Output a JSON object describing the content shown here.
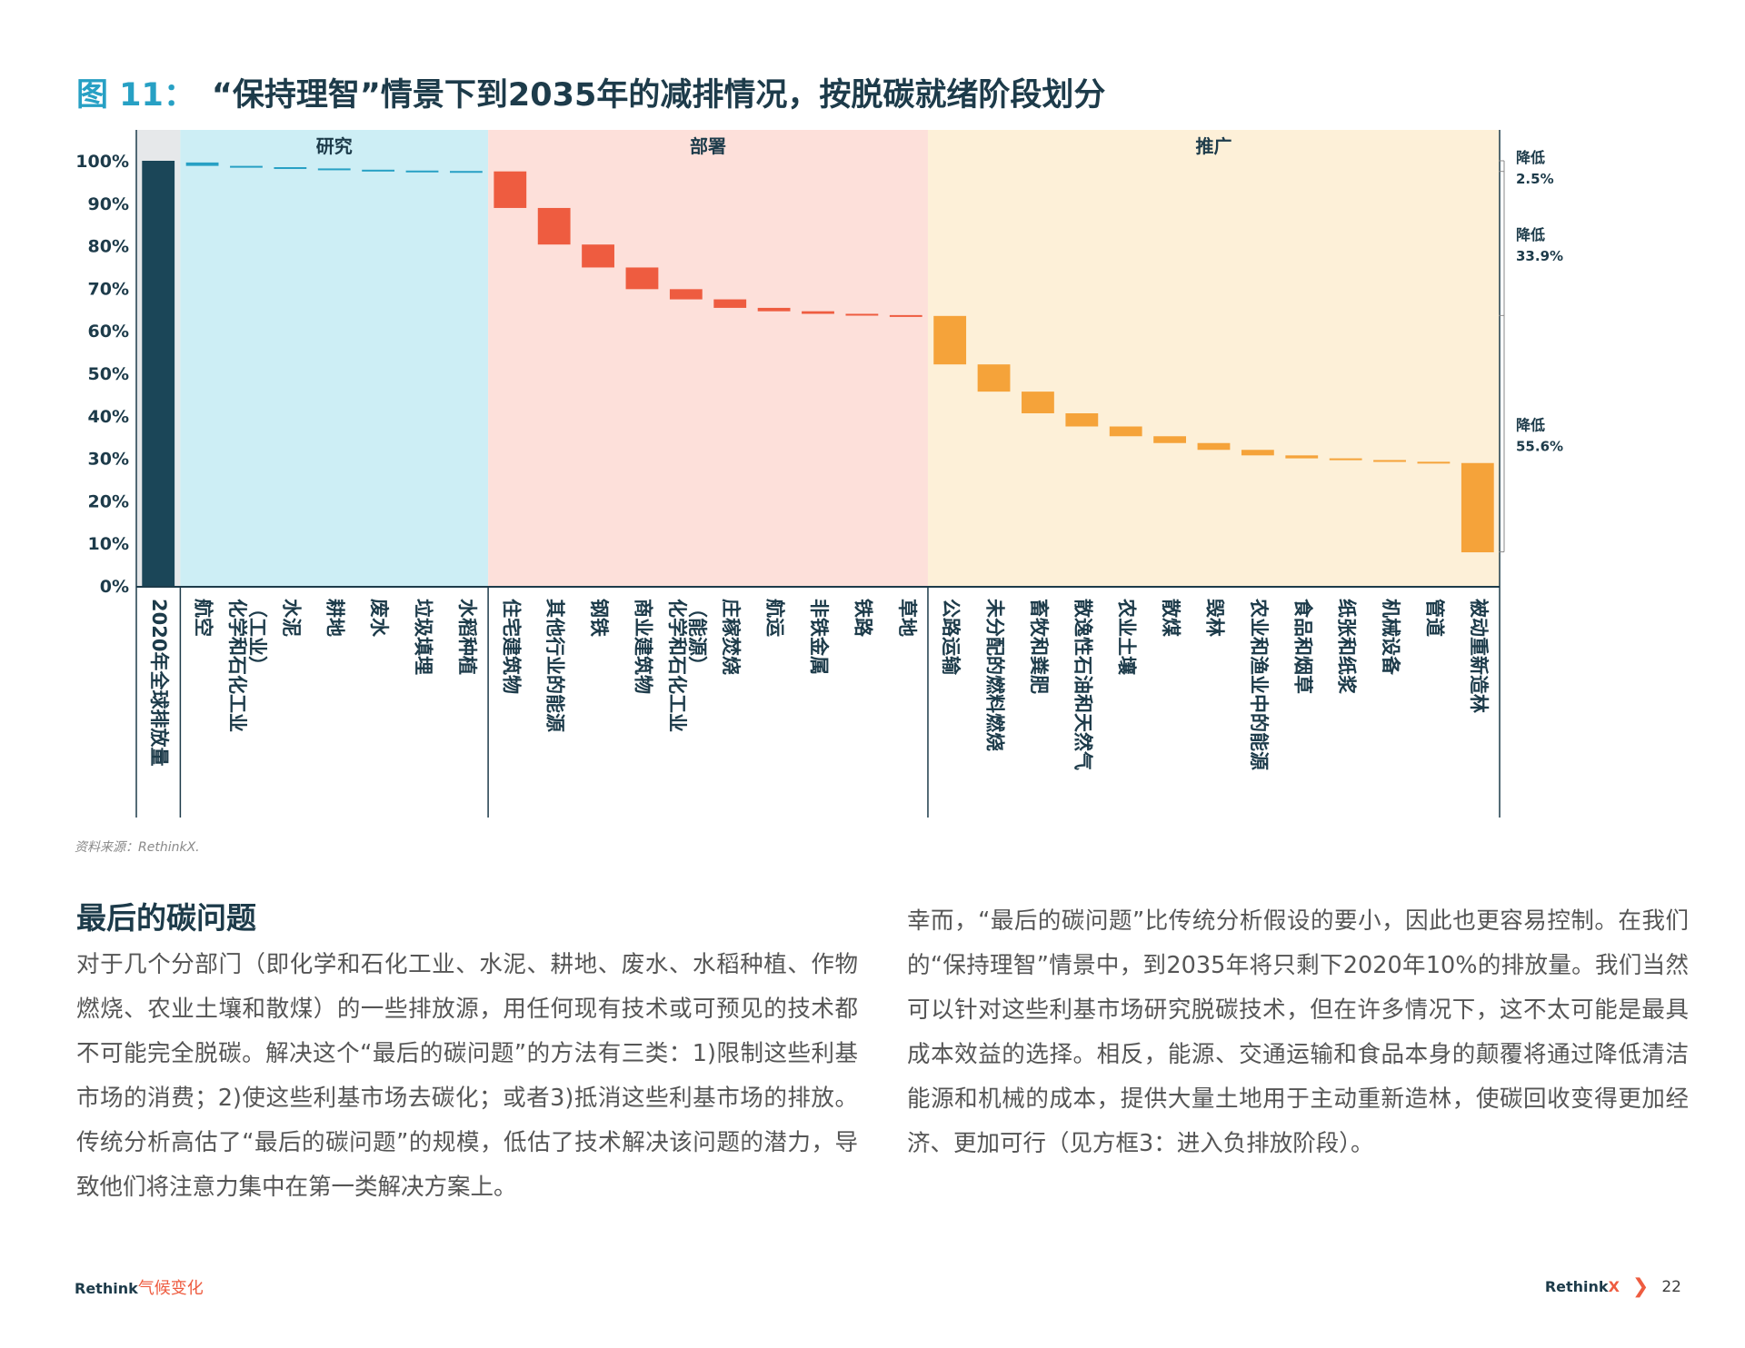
{
  "figure": {
    "number": "图 11：",
    "title": "“保持理智”情景下到2035年的减排情况，按脱碳就绪阶段划分"
  },
  "chart_data": {
    "type": "bar",
    "subtype": "waterfall",
    "ylim": [
      0,
      100
    ],
    "yticks": [
      "0%",
      "10%",
      "20%",
      "30%",
      "40%",
      "50%",
      "60%",
      "70%",
      "80%",
      "90%",
      "100%"
    ],
    "phases": [
      {
        "name": "研究",
        "color": "#cdeef5",
        "bar_color": "#27a0c4"
      },
      {
        "name": "部署",
        "color": "#fde0da",
        "bar_color": "#ee5c40"
      },
      {
        "name": "推广",
        "color": "#fdf0d8",
        "bar_color": "#f5a33a"
      }
    ],
    "bars": [
      {
        "label": "2020年全球排放量",
        "phase": -1,
        "top": 100,
        "bottom": 0
      },
      {
        "label": "航空",
        "phase": 0,
        "top": 99.6,
        "bottom": 98.8
      },
      {
        "label": "化学和石化工业 （工业）",
        "phase": 0,
        "top": 98.8,
        "bottom": 98.5
      },
      {
        "label": "水泥",
        "phase": 0,
        "top": 98.5,
        "bottom": 98.2
      },
      {
        "label": "耕地",
        "phase": 0,
        "top": 98.2,
        "bottom": 97.9
      },
      {
        "label": "废水",
        "phase": 0,
        "top": 97.9,
        "bottom": 97.7
      },
      {
        "label": "垃圾填埋",
        "phase": 0,
        "top": 97.7,
        "bottom": 97.6
      },
      {
        "label": "水稻种植",
        "phase": 0,
        "top": 97.6,
        "bottom": 97.5
      },
      {
        "label": "住宅建筑物",
        "phase": 1,
        "top": 97.5,
        "bottom": 88.9
      },
      {
        "label": "其他行业的能源",
        "phase": 1,
        "top": 88.9,
        "bottom": 80.3
      },
      {
        "label": "钢铁",
        "phase": 1,
        "top": 80.3,
        "bottom": 74.9
      },
      {
        "label": "商业建筑物",
        "phase": 1,
        "top": 74.9,
        "bottom": 69.8
      },
      {
        "label": "化学和石化工业 （能源）",
        "phase": 1,
        "top": 69.8,
        "bottom": 67.4
      },
      {
        "label": "庄稼焚烧",
        "phase": 1,
        "top": 67.4,
        "bottom": 65.4
      },
      {
        "label": "航运",
        "phase": 1,
        "top": 65.4,
        "bottom": 64.6
      },
      {
        "label": "非铁金属",
        "phase": 1,
        "top": 64.6,
        "bottom": 64.0
      },
      {
        "label": "铁路",
        "phase": 1,
        "top": 64.0,
        "bottom": 63.7
      },
      {
        "label": "草地",
        "phase": 1,
        "top": 63.7,
        "bottom": 63.5
      },
      {
        "label": "公路运输",
        "phase": 2,
        "top": 63.5,
        "bottom": 52.1
      },
      {
        "label": "未分配的燃料燃烧",
        "phase": 2,
        "top": 52.1,
        "bottom": 45.7
      },
      {
        "label": "畜牧和粪肥",
        "phase": 2,
        "top": 45.7,
        "bottom": 40.6
      },
      {
        "label": "散逸性石油和天然气",
        "phase": 2,
        "top": 40.6,
        "bottom": 37.5
      },
      {
        "label": "农业土壤",
        "phase": 2,
        "top": 37.5,
        "bottom": 35.2
      },
      {
        "label": "散煤",
        "phase": 2,
        "top": 35.2,
        "bottom": 33.6
      },
      {
        "label": "毁林",
        "phase": 2,
        "top": 33.6,
        "bottom": 32.0
      },
      {
        "label": "农业和渔业中的能源",
        "phase": 2,
        "top": 32.0,
        "bottom": 30.7
      },
      {
        "label": "食品和烟草",
        "phase": 2,
        "top": 30.7,
        "bottom": 30.0
      },
      {
        "label": "纸张和纸浆",
        "phase": 2,
        "top": 30.0,
        "bottom": 29.6
      },
      {
        "label": "机械设备",
        "phase": 2,
        "top": 29.6,
        "bottom": 29.2
      },
      {
        "label": "管道",
        "phase": 2,
        "top": 29.2,
        "bottom": 28.9
      },
      {
        "label": "被动重新造林",
        "phase": 2,
        "top": 28.9,
        "bottom": 7.9
      }
    ],
    "annotations": [
      {
        "line1": "降低",
        "line2": "2.5%",
        "from": 100,
        "to": 97.5
      },
      {
        "line1": "降低",
        "line2": "33.9%",
        "from": 97.5,
        "to": 63.6
      },
      {
        "line1": "降低",
        "line2": "55.6%",
        "from": 63.6,
        "to": 8.0
      }
    ]
  },
  "source": "资料来源：RethinkX.",
  "section": {
    "heading": "最后的碳问题",
    "left_paragraph": "对于几个分部门（即化学和石化工业、水泥、耕地、废水、水稻种植、作物燃烧、农业土壤和散煤）的一些排放源，用任何现有技术或可预见的技术都不可能完全脱碳。解决这个“最后的碳问题”的方法有三类：1)限制这些利基市场的消费；2)使这些利基市场去碳化；或者3)抵消这些利基市场的排放。传统分析高估了“最后的碳问题”的规模，低估了技术解决该问题的潜力，导致他们将注意力集中在第一类解决方案上。",
    "right_paragraph": "幸而，“最后的碳问题”比传统分析假设的要小，因此也更容易控制。在我们的“保持理智”情景中，到2035年将只剩下2020年10%的排放量。我们当然可以针对这些利基市场研究脱碳技术，但在许多情况下，这不太可能是最具成本效益的选择。相反，能源、交通运输和食品本身的颠覆将通过降低清洁能源和机械的成本，提供大量土地用于主动重新造林，使碳回收变得更加经济、更加可行（见方框3：进入负排放阶段）。"
  },
  "footer": {
    "left_brand": "Rethink",
    "left_brand_zh": "气候变化",
    "right_brand": "Rethink",
    "right_brand_x": "X",
    "chevron": "❯",
    "page_number": "22"
  }
}
